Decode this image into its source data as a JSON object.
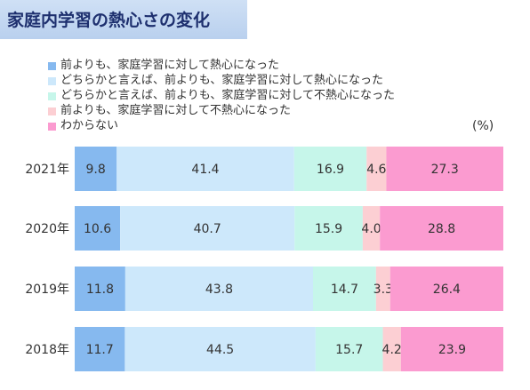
{
  "title": "家庭内学習の熱心さの変化",
  "unit": "(%)",
  "legend": [
    {
      "label": "前よりも、家庭学習に対して熱心になった",
      "color": "#86b9ef"
    },
    {
      "label": "どちらかと言えば、前よりも、家庭学習に対して熱心になった",
      "color": "#cde8fb"
    },
    {
      "label": "どちらかと言えば、前よりも、家庭学習に対して不熱心になった",
      "color": "#c6f6ea"
    },
    {
      "label": "前よりも、家庭学習に対して不熱心になった",
      "color": "#fccfd3"
    },
    {
      "label": "わからない",
      "color": "#fb9bd0"
    }
  ],
  "chart_data": {
    "type": "bar",
    "orientation": "horizontal",
    "stacked": true,
    "categories": [
      "2021年",
      "2020年",
      "2019年",
      "2018年"
    ],
    "series": [
      {
        "name": "前よりも、家庭学習に対して熱心になった",
        "values": [
          9.8,
          10.6,
          11.8,
          11.7
        ]
      },
      {
        "name": "どちらかと言えば、前よりも、家庭学習に対して熱心になった",
        "values": [
          41.4,
          40.7,
          43.8,
          44.5
        ]
      },
      {
        "name": "どちらかと言えば、前よりも、家庭学習に対して不熱心になった",
        "values": [
          16.9,
          15.9,
          14.7,
          15.7
        ]
      },
      {
        "name": "前よりも、家庭学習に対して不熱心になった",
        "values": [
          4.6,
          4.0,
          3.3,
          4.2
        ]
      },
      {
        "name": "わからない",
        "values": [
          27.3,
          28.8,
          26.4,
          23.9
        ]
      }
    ],
    "value_labels": [
      [
        "9.8",
        "41.4",
        "16.9",
        "4.6",
        "27.3"
      ],
      [
        "10.6",
        "40.7",
        "15.9",
        "4.0",
        "28.8"
      ],
      [
        "11.8",
        "43.8",
        "14.7",
        "3.3",
        "26.4"
      ],
      [
        "11.7",
        "44.5",
        "15.7",
        "4.2",
        "23.9"
      ]
    ],
    "xlim": [
      0,
      100
    ],
    "legend_position": "top-left",
    "grid": false
  }
}
